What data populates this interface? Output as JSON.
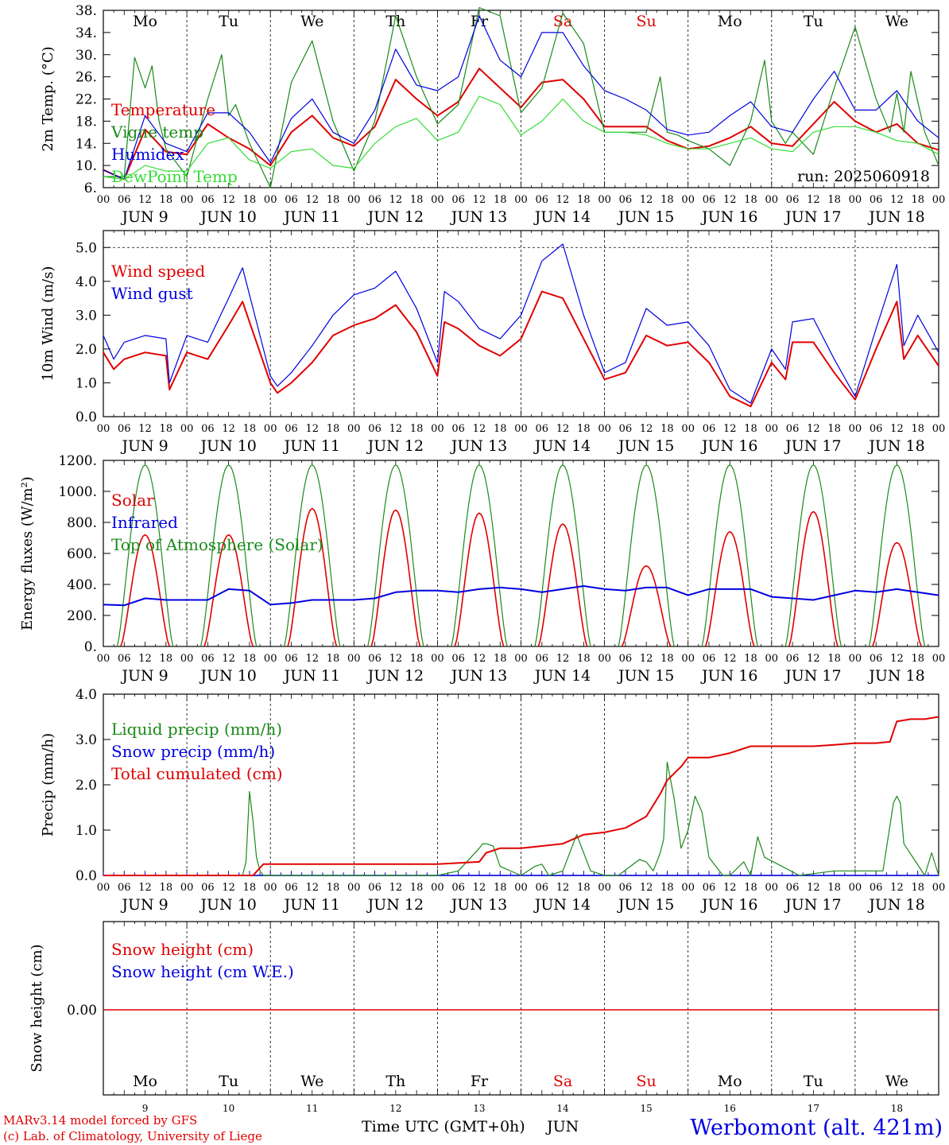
{
  "days": [
    "Mo",
    "Tu",
    "We",
    "Th",
    "Fr",
    "Sa",
    "Su",
    "Mo",
    "Tu",
    "We"
  ],
  "day_colors": [
    "#000000",
    "#000000",
    "#000000",
    "#000000",
    "#000000",
    "#e00000",
    "#e00000",
    "#000000",
    "#000000",
    "#000000"
  ],
  "dates": [
    "JUN  9",
    "JUN 10",
    "JUN 11",
    "JUN 12",
    "JUN 13",
    "JUN 14",
    "JUN 15",
    "JUN 16",
    "JUN 17",
    "JUN 18"
  ],
  "hour_ticks": [
    "00",
    "06",
    "12",
    "18"
  ],
  "hour_end": "00",
  "bottom_day_numbers": [
    "9",
    "10",
    "11",
    "12",
    "13",
    "14",
    "15",
    "16",
    "17",
    "18"
  ],
  "run_label": "run: 2025060918",
  "footer": {
    "credit_1": "MARv3.14 model forced by GFS",
    "credit_2": "(c) Lab. of Climatology, University of Liege",
    "xlabel": "Time UTC (GMT+0h)",
    "month": "JUN",
    "station": "Werbomont (alt. 421m)"
  },
  "colors": {
    "red": "#e00000",
    "green": "#1a8a1a",
    "blue": "#0000e0",
    "lightgreen": "#33dd33"
  },
  "chart_data": [
    {
      "type": "line",
      "ylabel": "2m Temp. (°C)",
      "ylim": [
        6,
        38
      ],
      "yticks": [
        "6.",
        "10.",
        "14.",
        "18.",
        "22.",
        "26.",
        "30.",
        "34.",
        "38."
      ],
      "x_unit": "hours since JUN 9 00 UTC",
      "series": [
        {
          "name": "Temperature",
          "color": "red",
          "x": [
            0,
            6,
            12,
            18,
            24,
            30,
            36,
            42,
            48,
            54,
            60,
            66,
            72,
            78,
            84,
            90,
            96,
            102,
            108,
            114,
            120,
            126,
            132,
            138,
            144,
            150,
            156,
            162,
            168,
            174,
            180,
            186,
            192,
            198,
            204,
            210,
            216,
            222,
            228,
            234,
            240
          ],
          "values": [
            9.2,
            7.5,
            16.5,
            12.5,
            12,
            17.5,
            15,
            13,
            10,
            16,
            19,
            15,
            13.5,
            17,
            25.5,
            22,
            19,
            21.5,
            27.5,
            24,
            20.5,
            25,
            25.5,
            22,
            17,
            17,
            17,
            14.5,
            13,
            13.5,
            15,
            17,
            14,
            13.5,
            17.5,
            21.5,
            18,
            16,
            17.5,
            14,
            12.8
          ]
        },
        {
          "name": "Vigne temp",
          "color": "green",
          "x": [
            0,
            6,
            9,
            12,
            14,
            16,
            18,
            24,
            30,
            34,
            36,
            38,
            42,
            48,
            54,
            60,
            66,
            72,
            78,
            84,
            90,
            96,
            102,
            108,
            114,
            120,
            126,
            132,
            138,
            144,
            150,
            156,
            160,
            162,
            165,
            168,
            174,
            180,
            186,
            190,
            192,
            196,
            198,
            204,
            210,
            216,
            222,
            226,
            228,
            230,
            232,
            236,
            240
          ],
          "values": [
            8,
            8,
            29.5,
            24,
            28,
            18,
            13,
            8,
            22,
            30,
            19,
            21,
            14,
            6,
            25,
            32.5,
            18,
            9,
            18,
            37,
            26,
            17.5,
            21,
            38.5,
            37,
            19.5,
            24,
            37.5,
            32,
            16,
            16,
            16,
            26,
            16,
            15.5,
            14.5,
            13,
            10,
            18,
            29,
            18,
            14,
            16,
            12,
            24,
            35,
            22,
            16,
            23,
            16,
            27,
            16,
            10
          ]
        },
        {
          "name": "Humidex",
          "color": "blue",
          "x": [
            0,
            6,
            12,
            18,
            24,
            30,
            36,
            42,
            48,
            54,
            60,
            66,
            72,
            78,
            84,
            90,
            96,
            102,
            108,
            114,
            120,
            126,
            132,
            138,
            144,
            150,
            156,
            162,
            168,
            174,
            180,
            186,
            192,
            198,
            204,
            210,
            216,
            222,
            228,
            234,
            240
          ],
          "values": [
            9.2,
            7.5,
            19,
            14,
            12.5,
            19.5,
            19.5,
            16,
            10.5,
            18.5,
            22,
            16,
            14,
            20,
            31,
            24.5,
            23.5,
            26,
            37,
            29,
            26,
            34,
            34,
            28,
            23.5,
            22,
            20,
            16.5,
            15.5,
            16,
            19,
            21.5,
            17,
            16,
            22,
            27,
            20,
            20,
            23.5,
            18,
            15
          ]
        },
        {
          "name": "DewPoint Temp",
          "color": "lightgreen",
          "x": [
            0,
            6,
            12,
            18,
            24,
            30,
            36,
            42,
            48,
            54,
            60,
            66,
            72,
            78,
            84,
            90,
            96,
            102,
            108,
            114,
            120,
            126,
            132,
            138,
            144,
            150,
            156,
            162,
            168,
            174,
            180,
            186,
            192,
            198,
            204,
            210,
            216,
            222,
            228,
            234,
            240
          ],
          "values": [
            8,
            7.5,
            10,
            9,
            9,
            14,
            15,
            11,
            9.5,
            12.5,
            13,
            10,
            9.5,
            14,
            17,
            18.5,
            14.5,
            16,
            22.5,
            21,
            15.5,
            18,
            22,
            18,
            16,
            16,
            15.5,
            14,
            13,
            13,
            14,
            15,
            13,
            12.5,
            16,
            17,
            17,
            16,
            14.5,
            14,
            12
          ]
        }
      ]
    },
    {
      "type": "line",
      "ylabel": "10m Wind (m/s)",
      "ylim": [
        0,
        5.5
      ],
      "yticks": [
        "0.0",
        "1.0",
        "2.0",
        "3.0",
        "4.0",
        "5.0"
      ],
      "reference_line": 5.0,
      "series": [
        {
          "name": "Wind speed",
          "color": "red",
          "x": [
            0,
            3,
            6,
            12,
            18,
            19,
            24,
            30,
            36,
            40,
            42,
            44,
            48,
            50,
            54,
            60,
            66,
            72,
            78,
            84,
            90,
            96,
            98,
            102,
            108,
            114,
            120,
            126,
            132,
            138,
            144,
            150,
            156,
            162,
            168,
            174,
            180,
            186,
            192,
            196,
            198,
            204,
            210,
            216,
            222,
            228,
            230,
            234,
            240
          ],
          "values": [
            1.9,
            1.4,
            1.7,
            1.9,
            1.8,
            0.8,
            1.9,
            1.7,
            2.7,
            3.4,
            2.8,
            2.2,
            1.0,
            0.7,
            1.0,
            1.6,
            2.4,
            2.7,
            2.9,
            3.3,
            2.5,
            1.2,
            2.8,
            2.6,
            2.1,
            1.8,
            2.3,
            3.7,
            3.5,
            2.3,
            1.1,
            1.3,
            2.4,
            2.1,
            2.2,
            1.6,
            0.6,
            0.3,
            1.6,
            1.1,
            2.2,
            2.2,
            1.3,
            0.5,
            2.0,
            3.4,
            1.7,
            2.4,
            1.5
          ]
        },
        {
          "name": "Wind gust",
          "color": "blue",
          "x": [
            0,
            3,
            6,
            12,
            18,
            19,
            24,
            30,
            36,
            40,
            42,
            44,
            48,
            50,
            54,
            60,
            66,
            72,
            78,
            84,
            90,
            96,
            98,
            102,
            108,
            114,
            120,
            126,
            132,
            138,
            144,
            150,
            156,
            162,
            168,
            174,
            180,
            186,
            192,
            196,
            198,
            204,
            210,
            216,
            222,
            228,
            230,
            234,
            240
          ],
          "values": [
            2.4,
            1.7,
            2.2,
            2.4,
            2.3,
            1.0,
            2.4,
            2.2,
            3.5,
            4.4,
            3.6,
            2.8,
            1.2,
            0.9,
            1.3,
            2.1,
            3.0,
            3.6,
            3.8,
            4.3,
            3.2,
            1.6,
            3.7,
            3.4,
            2.6,
            2.3,
            3.0,
            4.6,
            5.1,
            3.0,
            1.3,
            1.6,
            3.2,
            2.7,
            2.8,
            2.1,
            0.8,
            0.4,
            2.0,
            1.4,
            2.8,
            2.9,
            1.7,
            0.6,
            2.6,
            4.5,
            2.1,
            3.0,
            1.9
          ]
        }
      ]
    },
    {
      "type": "line",
      "ylabel": "Energy fluxes (W/m²)",
      "ylim": [
        0,
        1200
      ],
      "yticks": [
        "0.",
        "200.",
        "400.",
        "600.",
        "800.",
        "1000.",
        "1200."
      ],
      "series": [
        {
          "name": "Solar",
          "color": "red"
        },
        {
          "name": "Infrared",
          "color": "blue"
        },
        {
          "name": "Top of Atmosphere (Solar)",
          "color": "green"
        }
      ],
      "toa_peak": 1170,
      "daylight_hours": [
        4,
        20
      ],
      "solar_peaks": [
        720,
        720,
        890,
        880,
        860,
        790,
        520,
        740,
        870,
        670
      ],
      "infrared_x": [
        0,
        6,
        12,
        18,
        24,
        30,
        36,
        42,
        48,
        54,
        60,
        66,
        72,
        78,
        84,
        90,
        96,
        102,
        108,
        114,
        120,
        126,
        132,
        138,
        144,
        150,
        156,
        162,
        168,
        174,
        180,
        186,
        192,
        198,
        204,
        210,
        216,
        222,
        228,
        234,
        240
      ],
      "infrared_values": [
        270,
        265,
        310,
        300,
        300,
        300,
        370,
        360,
        270,
        280,
        300,
        300,
        300,
        310,
        350,
        360,
        360,
        350,
        370,
        380,
        370,
        350,
        370,
        390,
        370,
        360,
        380,
        380,
        330,
        370,
        370,
        370,
        320,
        310,
        300,
        330,
        360,
        350,
        370,
        350,
        330
      ]
    },
    {
      "type": "line",
      "ylabel": "Precip (mm/h)",
      "ylim": [
        0,
        4
      ],
      "yticks": [
        "0.0",
        "1.0",
        "2.0",
        "3.0",
        "4.0"
      ],
      "series": [
        {
          "name": "Liquid precip (mm/h)",
          "color": "green",
          "x": [
            0,
            40,
            41,
            42,
            43,
            44,
            45,
            46,
            48,
            96,
            102,
            108,
            109,
            110,
            112,
            114,
            120,
            124,
            126,
            128,
            132,
            136,
            138,
            140,
            144,
            148,
            154,
            156,
            158,
            160,
            161,
            162,
            164,
            166,
            168,
            170,
            172,
            174,
            178,
            180,
            184,
            186,
            188,
            190,
            200,
            210,
            224,
            227,
            228,
            229,
            230,
            236,
            238,
            240
          ],
          "values": [
            0,
            0,
            0.3,
            1.85,
            1.2,
            0.4,
            0.1,
            0,
            0,
            0,
            0.1,
            0.6,
            0.7,
            0.7,
            0.65,
            0.2,
            0,
            0.2,
            0.25,
            0,
            0.1,
            0.9,
            0.5,
            0.1,
            0,
            0,
            0.35,
            0.3,
            0.1,
            0.5,
            0.8,
            2.5,
            1.7,
            0.6,
            1.0,
            1.75,
            1.4,
            0.4,
            0,
            0,
            0.3,
            0,
            0.85,
            0.4,
            0,
            0.1,
            0.1,
            1.6,
            1.75,
            1.6,
            0.7,
            0,
            0.5,
            0
          ]
        },
        {
          "name": "Snow precip (mm/h)",
          "color": "blue",
          "x": [
            0,
            240
          ],
          "values": [
            0,
            0
          ]
        },
        {
          "name": "Total cumulated (cm)",
          "color": "red",
          "x": [
            0,
            40,
            43,
            46,
            96,
            108,
            110,
            114,
            120,
            126,
            132,
            138,
            144,
            150,
            156,
            160,
            162,
            166,
            168,
            174,
            180,
            186,
            192,
            198,
            204,
            210,
            216,
            222,
            226,
            228,
            232,
            236,
            240
          ],
          "values": [
            0,
            0,
            0,
            0.25,
            0.25,
            0.3,
            0.5,
            0.6,
            0.6,
            0.65,
            0.7,
            0.9,
            0.95,
            1.05,
            1.3,
            1.8,
            2.1,
            2.4,
            2.6,
            2.6,
            2.7,
            2.85,
            2.85,
            2.85,
            2.85,
            2.88,
            2.92,
            2.92,
            2.95,
            3.4,
            3.45,
            3.45,
            3.5
          ]
        }
      ]
    },
    {
      "type": "line",
      "ylabel": "Snow height (cm)",
      "ytick": "0.00",
      "series": [
        {
          "name": "Snow height (cm)",
          "color": "red",
          "x": [
            0,
            240
          ],
          "values": [
            0,
            0
          ]
        },
        {
          "name": "Snow height (cm W.E.)",
          "color": "blue",
          "x": [
            0,
            240
          ],
          "values": [
            0,
            0
          ]
        }
      ]
    }
  ]
}
